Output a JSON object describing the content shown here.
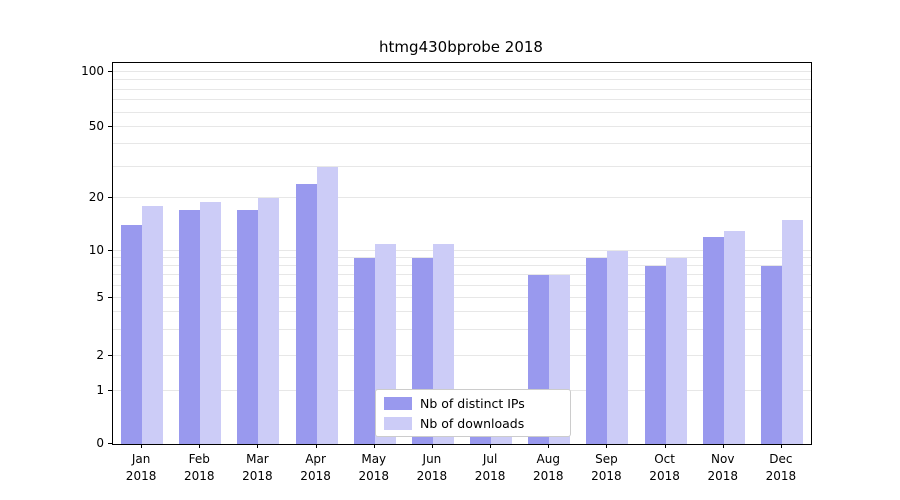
{
  "title": "htmg430bprobe 2018",
  "chart_data": {
    "type": "bar",
    "title": "htmg430bprobe 2018",
    "months": [
      "Jan",
      "Feb",
      "Mar",
      "Apr",
      "May",
      "Jun",
      "Jul",
      "Aug",
      "Sep",
      "Oct",
      "Nov",
      "Dec"
    ],
    "year": "2018",
    "series": [
      {
        "name": "Nb of distinct IPs",
        "color": "#9999ee",
        "values": [
          14,
          17,
          17,
          24,
          9,
          9,
          1,
          7,
          9,
          8,
          12,
          8
        ]
      },
      {
        "name": "Nb of downloads",
        "color": "#ccccf7",
        "values": [
          18,
          19,
          20,
          30,
          11,
          11,
          1,
          7,
          10,
          9,
          13,
          15
        ]
      }
    ],
    "yticks": [
      0,
      1,
      2,
      5,
      10,
      20,
      50,
      100
    ],
    "ylim": [
      0,
      100
    ],
    "scale": "symlog",
    "grid": true,
    "legend_position": "lower center"
  }
}
